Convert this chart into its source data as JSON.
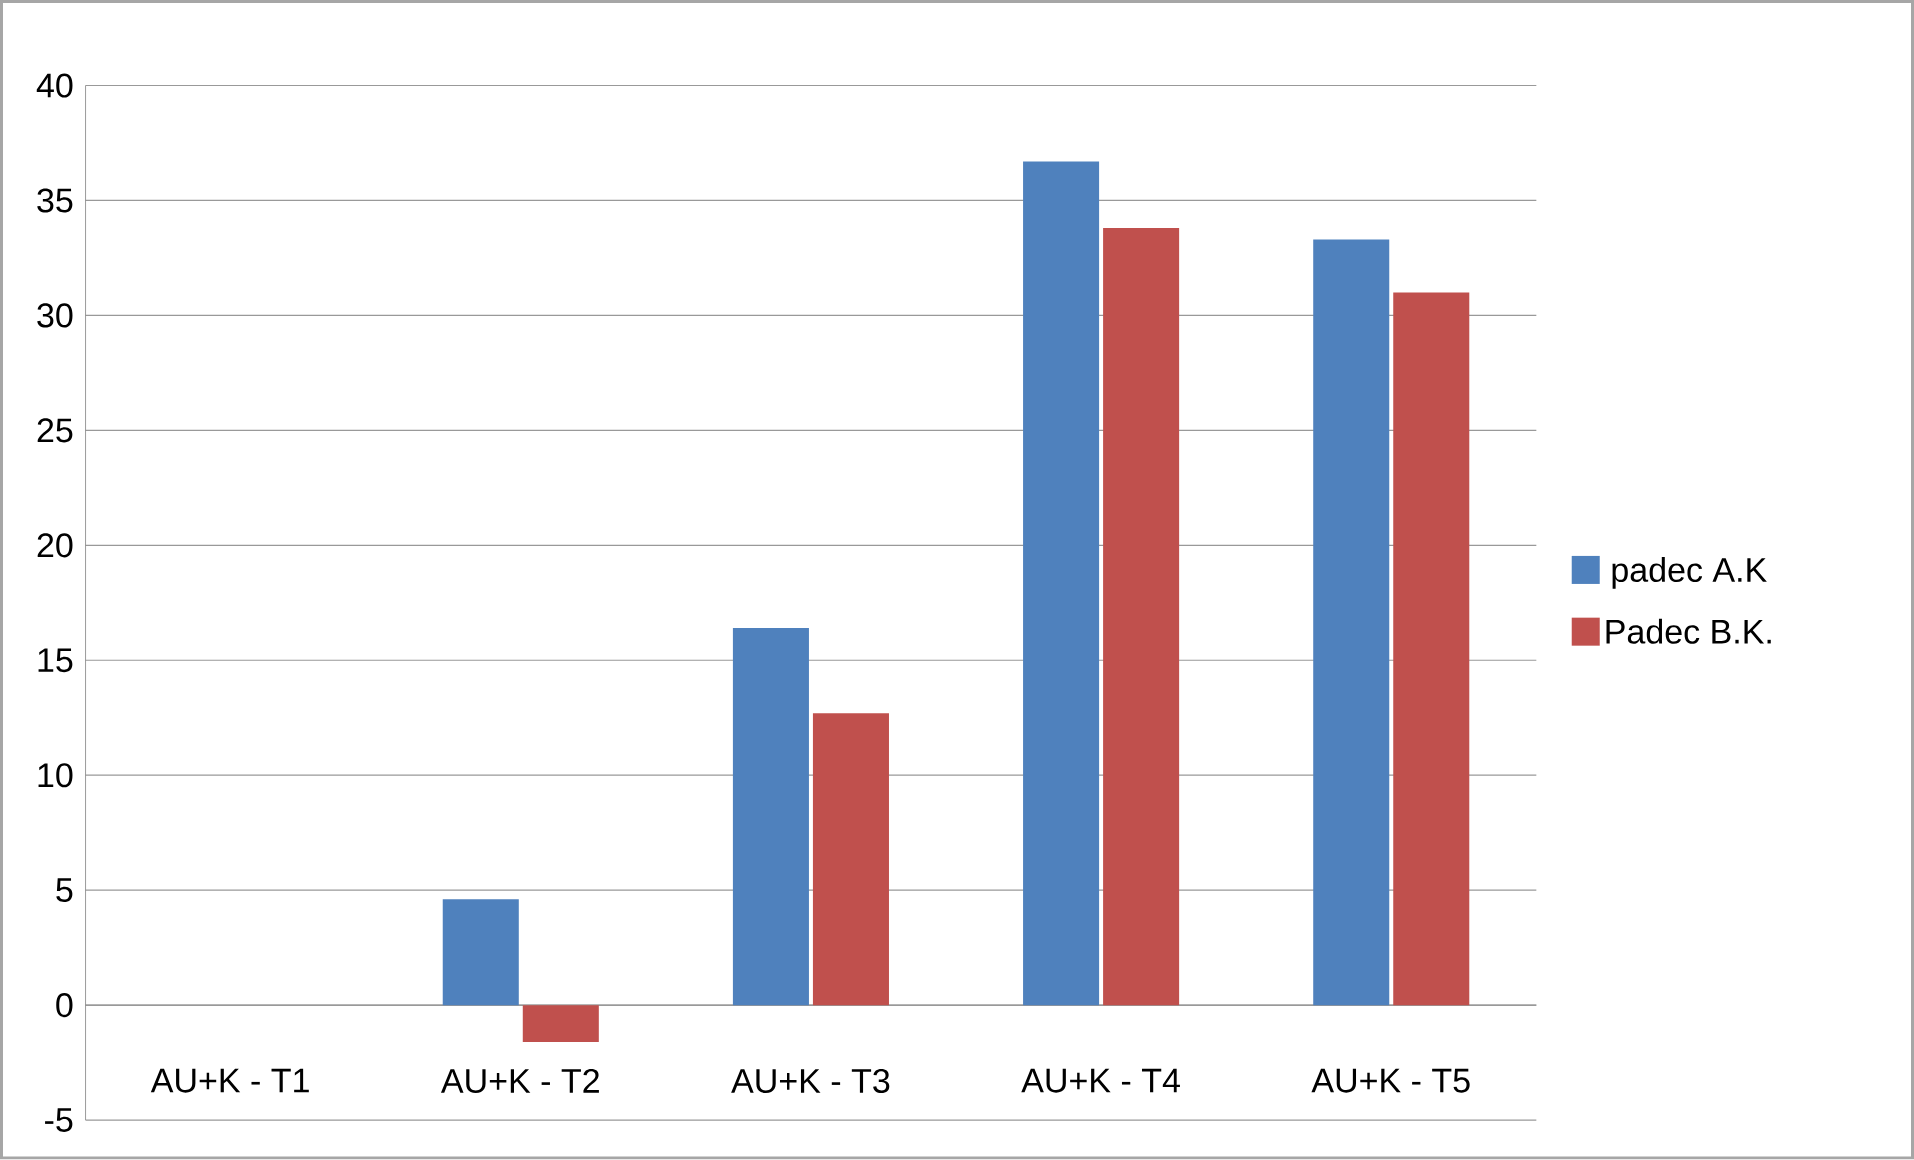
{
  "chart_data": {
    "type": "bar",
    "categories": [
      "AU+K - T1",
      "AU+K - T2",
      "AU+K - T3",
      "AU+K - T4",
      "AU+K - T5"
    ],
    "series": [
      {
        "name": "padec A.K",
        "color": "#4f81bd",
        "values": [
          0,
          4.6,
          16.4,
          36.7,
          33.3
        ]
      },
      {
        "name": "Padec B.K.",
        "color": "#c0504d",
        "values": [
          0,
          -1.6,
          12.7,
          33.8,
          31.0
        ]
      }
    ],
    "ylim": [
      -5,
      40
    ],
    "yticks": [
      -5,
      0,
      5,
      10,
      15,
      20,
      25,
      30,
      35,
      40
    ],
    "grid": "y",
    "legend": "right"
  }
}
